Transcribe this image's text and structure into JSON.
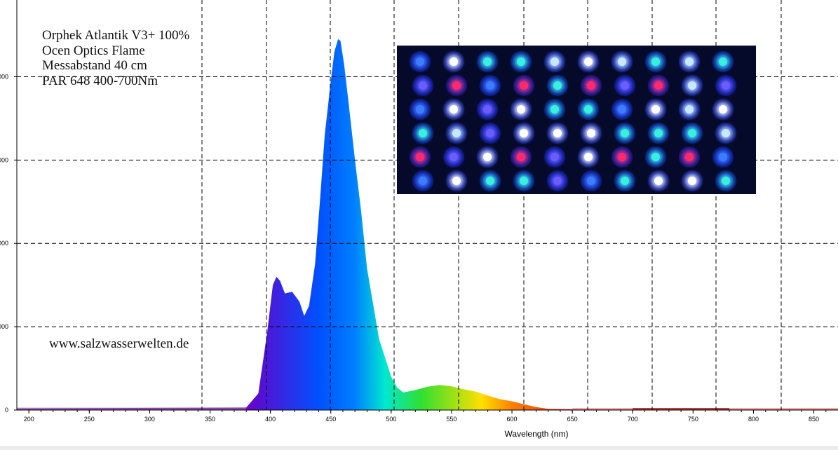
{
  "annotation": {
    "lines": [
      "Orphek Atlantik V3+ 100%",
      "Ocen Optics Flame",
      "Messabstand 40 cm",
      "PAR 648 400-700Nm"
    ]
  },
  "watermark": "www.salzwasserwelten.de",
  "photo": {
    "alt_description_icon": "led-fixture-photo",
    "core_colors": [
      "#ffffff",
      "#39f0e0",
      "#6a5cff",
      "#ff2a6e",
      "#c8e8ff",
      "#3d7bff"
    ]
  },
  "chart_data": {
    "type": "area",
    "xlabel": "Wavelength (nm)",
    "ylabel": "",
    "xlim": [
      190,
      870
    ],
    "ylim": [
      0,
      4500
    ],
    "x_ticks": [
      200,
      250,
      300,
      350,
      400,
      450,
      500,
      550,
      600,
      650,
      700,
      750,
      800,
      850
    ],
    "y_tick_labels_visible": [
      "000",
      "000",
      "000",
      "000",
      "0"
    ],
    "y_tick_values": [
      4000,
      3000,
      2000,
      1000,
      0
    ],
    "grid": true,
    "grid_style": "dashed",
    "x": [
      190,
      380,
      390,
      397,
      402,
      405,
      408,
      412,
      418,
      424,
      428,
      432,
      437,
      441,
      445,
      450,
      453,
      456,
      458,
      461,
      465,
      470,
      475,
      480,
      490,
      500,
      505,
      510,
      520,
      530,
      540,
      550,
      560,
      570,
      580,
      590,
      600,
      610,
      620,
      630,
      650,
      700,
      750,
      800,
      870
    ],
    "values": [
      20,
      30,
      200,
      900,
      1500,
      1600,
      1550,
      1400,
      1420,
      1300,
      1130,
      1250,
      1750,
      2500,
      3300,
      3950,
      4300,
      4450,
      4430,
      4150,
      3650,
      3000,
      2400,
      1700,
      850,
      400,
      270,
      210,
      240,
      280,
      300,
      285,
      250,
      220,
      175,
      130,
      105,
      70,
      35,
      15,
      10,
      10,
      10,
      10,
      10
    ],
    "colors": {
      "spectrum_start": "#6a00c8",
      "spectrum_blue": "#0050ff",
      "spectrum_cyan": "#00e8d0",
      "spectrum_green": "#30e030",
      "spectrum_yellow": "#ffe000",
      "spectrum_red": "#e02020",
      "baseline_uv": "#a08098",
      "baseline_ir": "#e08080",
      "grid": "#000000",
      "axis": "#000000"
    }
  }
}
